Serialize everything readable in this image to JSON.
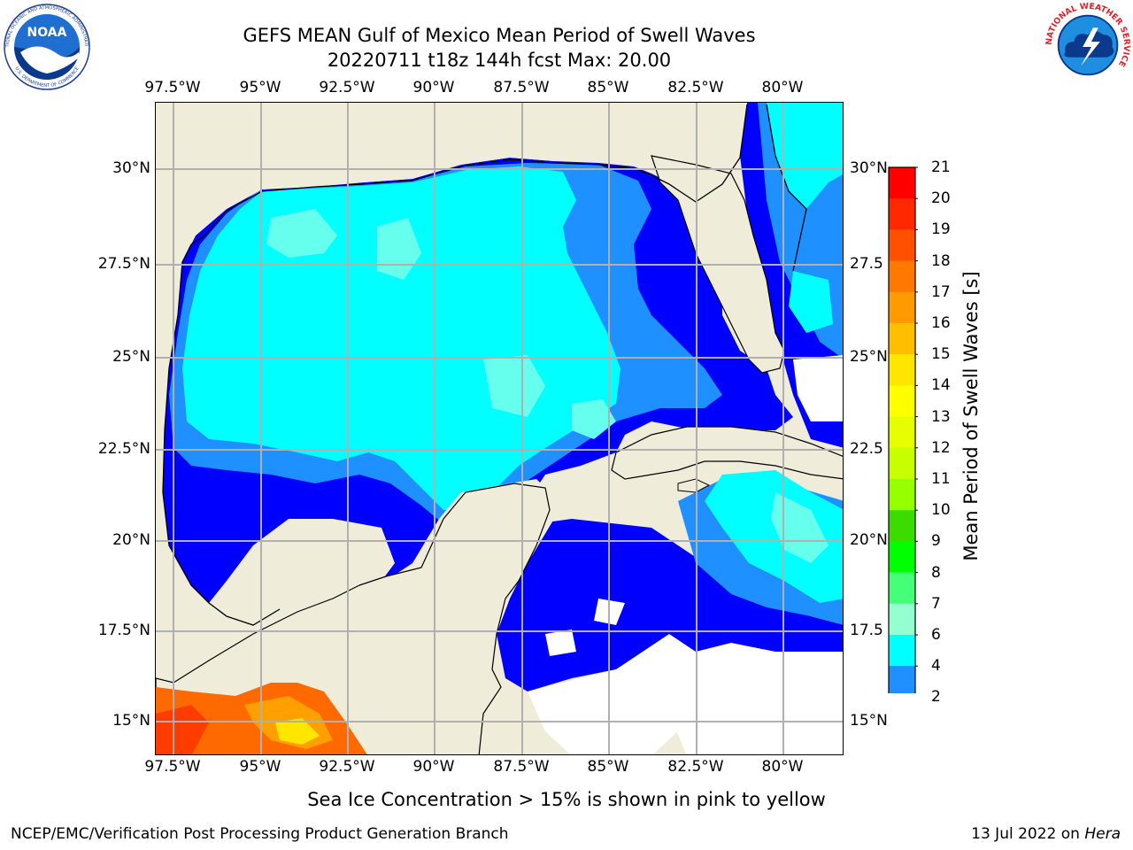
{
  "header": {
    "title_line1": "GEFS MEAN Gulf of Mexico Mean Period of Swell Waves",
    "title_line2": "20220711 t18z 144h fcst   Max: 20.00"
  },
  "map": {
    "lon_labels": [
      "97.5°W",
      "95°W",
      "92.5°W",
      "90°W",
      "87.5°W",
      "85°W",
      "82.5°W",
      "80°W"
    ],
    "lat_labels_left": [
      "30°N",
      "27.5°N",
      "25°N",
      "22.5°N",
      "20°N",
      "17.5°N",
      "15°N"
    ],
    "lat_labels_right": [
      "30°N",
      "27.5",
      "25°N",
      "22.5",
      "20°N",
      "17.5",
      "15°N"
    ],
    "colors": {
      "land": "#efecda",
      "gridline": "#b0b0b0",
      "swell_2_4": "#0000ff",
      "swell_4_6": "#1e90ff",
      "swell_6_8": "#00ffff",
      "swell_8_9": "#66ffee",
      "swell_15_21": "#ff6a00"
    }
  },
  "colorbar": {
    "label": "Mean Period of Swell Waves [s]",
    "ticks": [
      "21",
      "20",
      "19",
      "18",
      "17",
      "16",
      "15",
      "14",
      "13",
      "12",
      "11",
      "10",
      "9",
      "8",
      "7",
      "6",
      "4",
      "2"
    ],
    "colors": [
      "#ff0000",
      "#ff2800",
      "#ff5000",
      "#ff7800",
      "#ff9b00",
      "#ffbe00",
      "#ffe600",
      "#ffff00",
      "#e6ff00",
      "#c8ff00",
      "#96ff00",
      "#3cdc00",
      "#00ff00",
      "#46ff78",
      "#96ffd2",
      "#00ffff",
      "#1e90ff",
      "#0000ff"
    ]
  },
  "notes": {
    "sea_ice": "Sea Ice Concentration > 15% is shown in pink to yellow"
  },
  "footer": {
    "left": "NCEP/EMC/Verification Post Processing Product Generation Branch",
    "right_date": "13 Jul 2022 on ",
    "right_host": "Hera"
  },
  "logos": {
    "noaa_text": "NOAA",
    "noaa_ring_text": "NATIONAL OCEANIC AND ATMOSPHERIC ADMINISTRATION",
    "noaa_ring_bottom": "U.S. DEPARTMENT OF COMMERCE",
    "nws_ring_text": "NATIONAL WEATHER SERVICE"
  }
}
